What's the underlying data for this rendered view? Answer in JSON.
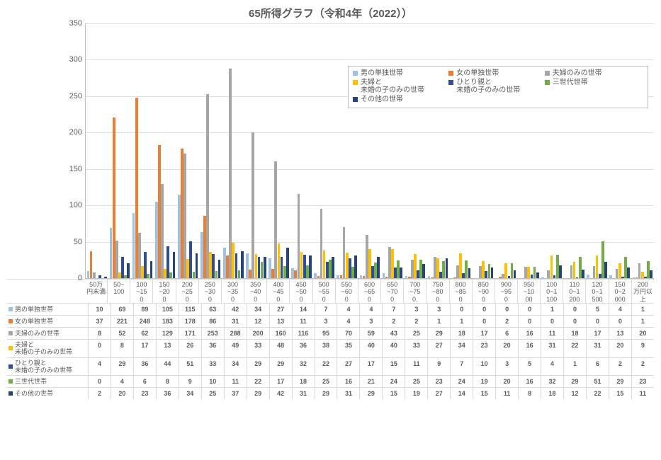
{
  "title": "65所得グラフ（令和4年（2022））",
  "ylim": [
    0,
    350
  ],
  "ytick_step": 50,
  "grid_color": "#e0e0e0",
  "axis_color": "#bfbfbf",
  "text_color": "#595959",
  "background": "#ffffff",
  "categories": [
    "50万円未満",
    "50~100",
    "100~150",
    "150~200",
    "200~250",
    "250~300",
    "300~350",
    "350~400",
    "400~450",
    "450~500",
    "500~550",
    "550~600",
    "600~650",
    "650~700",
    "700~750.",
    "750~800",
    "800~850",
    "850~900",
    "900~950",
    "950~1000",
    "1000~1100",
    "1100~1200",
    "1200~1500",
    "1500~2000",
    "200万円以上"
  ],
  "series": [
    {
      "name": "男の単独世帯",
      "color": "#9cc3e6",
      "values": [
        10,
        69,
        89,
        105,
        115,
        63,
        42,
        34,
        27,
        14,
        7,
        4,
        4,
        7,
        3,
        3,
        0,
        0,
        0,
        0,
        1,
        0,
        5,
        4,
        1
      ]
    },
    {
      "name": "女の単独世帯",
      "color": "#ed7d31",
      "values": [
        37,
        221,
        248,
        183,
        178,
        86,
        31,
        12,
        13,
        11,
        3,
        4,
        3,
        2,
        2,
        1,
        1,
        0,
        2,
        0,
        0,
        0,
        0,
        0,
        1
      ]
    },
    {
      "name": "夫婦のみの世帯",
      "color": "#a6a6a6",
      "values": [
        8,
        52,
        62,
        129,
        171,
        253,
        288,
        200,
        160,
        116,
        95,
        70,
        59,
        43,
        25,
        29,
        18,
        17,
        6,
        16,
        11,
        18,
        17,
        13,
        20
      ]
    },
    {
      "name": "夫婦と\n未婚の子のみの世帯",
      "color": "#ffc000",
      "values": [
        0,
        8,
        17,
        13,
        26,
        36,
        49,
        33,
        48,
        36,
        38,
        35,
        40,
        40,
        33,
        27,
        34,
        23,
        20,
        16,
        31,
        22,
        31,
        20,
        9
      ]
    },
    {
      "name": "ひとり親と\n未婚の子のみの世帯",
      "color": "#2e4d9e",
      "values": [
        4,
        29,
        36,
        44,
        51,
        33,
        34,
        29,
        29,
        32,
        22,
        27,
        17,
        15,
        11,
        9,
        7,
        10,
        3,
        5,
        4,
        1,
        6,
        2,
        2
      ]
    },
    {
      "name": "三世代世帯",
      "color": "#70ad47",
      "values": [
        0,
        4,
        6,
        8,
        9,
        10,
        11,
        22,
        17,
        18,
        25,
        16,
        21,
        24,
        25,
        23,
        24,
        19,
        20,
        16,
        32,
        29,
        51,
        29,
        23
      ]
    },
    {
      "name": "その他の世帯",
      "color": "#264478",
      "values": [
        2,
        20,
        23,
        36,
        34,
        25,
        37,
        29,
        42,
        31,
        29,
        31,
        29,
        15,
        19,
        27,
        14,
        15,
        11,
        8,
        18,
        12,
        22,
        15,
        11
      ]
    }
  ],
  "legend_rows": [
    [
      0,
      1,
      2
    ],
    [
      3,
      4,
      5
    ],
    [
      6
    ]
  ]
}
